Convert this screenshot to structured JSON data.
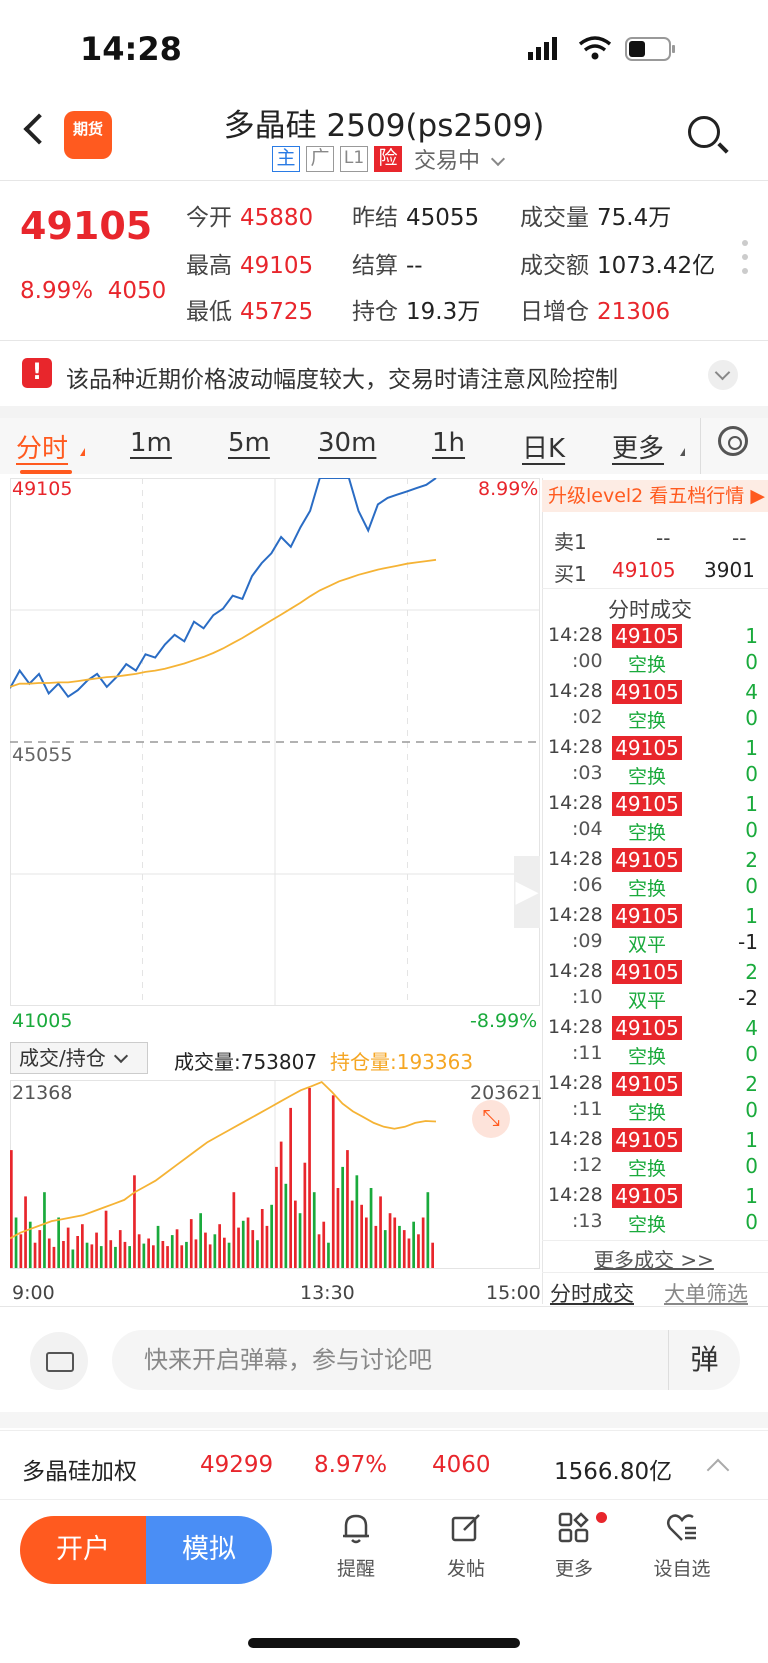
{
  "status_bar": {
    "time": "14:28"
  },
  "header": {
    "app_logo_label": "期货",
    "title": "多晶硅 2509(ps2509)",
    "tags": [
      "主",
      "广",
      "L1",
      "险"
    ],
    "trading_status": "交易中"
  },
  "quote": {
    "price": "49105",
    "change_pct": "8.99%",
    "change": "4050",
    "stats": [
      {
        "label": "今开",
        "value": "45880",
        "color": "red"
      },
      {
        "label": "昨结",
        "value": "45055",
        "color": "dark"
      },
      {
        "label": "成交量",
        "value": "75.4万",
        "color": "dark"
      },
      {
        "label": "最高",
        "value": "49105",
        "color": "red"
      },
      {
        "label": "结算",
        "value": "--",
        "color": "dark"
      },
      {
        "label": "成交额",
        "value": "1073.42亿",
        "color": "dark"
      },
      {
        "label": "最低",
        "value": "45725",
        "color": "red"
      },
      {
        "label": "持仓",
        "value": "19.3万",
        "color": "dark"
      },
      {
        "label": "日增仓",
        "value": "21306",
        "color": "red"
      }
    ]
  },
  "warning": {
    "text": "该品种近期价格波动幅度较大，交易时请注意风险控制",
    "icon": "exclamation-icon"
  },
  "period_tabs": [
    "分时",
    "1m",
    "5m",
    "30m",
    "1h",
    "日K",
    "更多"
  ],
  "chart_labels": {
    "top_price": "49105",
    "top_pct": "8.99%",
    "prev_settle": "45055",
    "bottom_price": "41005",
    "bottom_pct": "-8.99%",
    "vol_selector": "成交/持仓",
    "vol_text": "成交量:753807",
    "oi_text": "持仓量:193363",
    "vol_max": "21368",
    "oi_max": "203621",
    "time_start": "9:00",
    "time_mid": "13:30",
    "time_end": "15:00"
  },
  "chart_data": [
    {
      "type": "line",
      "y_axis": {
        "min": 41005,
        "max": 49105,
        "reference": 45055
      },
      "series": [
        {
          "name": "price",
          "color": "#2a6cc4",
          "values": [
            45880,
            46150,
            45950,
            46100,
            45800,
            45950,
            45750,
            45850,
            46000,
            46100,
            45900,
            46050,
            46250,
            46150,
            46400,
            46350,
            46550,
            46700,
            46600,
            46900,
            46800,
            47000,
            47100,
            47300,
            47250,
            47600,
            47800,
            47950,
            48200,
            48050,
            48350,
            48600,
            49105,
            49105,
            49105,
            49105,
            48600,
            48300,
            48700,
            48800,
            48850,
            48900,
            48950,
            49000,
            49105
          ]
        },
        {
          "name": "avg",
          "color": "#f5b335",
          "values": [
            45900,
            45950,
            45950,
            45960,
            45960,
            45970,
            45970,
            45990,
            46010,
            46030,
            46050,
            46060,
            46080,
            46100,
            46130,
            46150,
            46180,
            46220,
            46260,
            46310,
            46360,
            46420,
            46490,
            46570,
            46650,
            46740,
            46830,
            46920,
            47010,
            47100,
            47190,
            47290,
            47380,
            47450,
            47520,
            47570,
            47620,
            47660,
            47700,
            47730,
            47760,
            47790,
            47810,
            47830,
            47850
          ]
        }
      ]
    },
    {
      "type": "bar",
      "volume_max": 21368,
      "open_interest_max": 203621,
      "volume_values": [
        14000,
        6000,
        4000,
        8500,
        5500,
        3000,
        4500,
        9000,
        3500,
        2500,
        6000,
        3200,
        4800,
        2200,
        3800,
        5200,
        3000,
        2800,
        4200,
        2600,
        6800,
        3300,
        2500,
        4500,
        3100,
        2600,
        11000,
        4000,
        2900,
        3500,
        2700,
        5000,
        3200,
        2600,
        3900,
        4600,
        2700,
        3100,
        5800,
        3400,
        6500,
        4200,
        2800,
        4000,
        5200,
        3600,
        3000,
        9000,
        4800,
        5600,
        6000,
        4500,
        3300,
        7000,
        5000,
        7500,
        12000,
        15000,
        10000,
        19000,
        8000,
        6500,
        12500,
        21368,
        9000,
        4000,
        5500,
        3000,
        20500,
        9500,
        12000,
        14000,
        8000,
        11000,
        7500,
        6000,
        9500,
        5000,
        8500,
        4500,
        6500,
        6000,
        5000,
        4500,
        3500,
        5500,
        4000,
        6000,
        9000,
        3000
      ],
      "open_interest_values": [
        163000,
        164500,
        165500,
        166500,
        167500,
        168000,
        168500,
        169000,
        170000,
        171000,
        172000,
        173000,
        175000,
        176500,
        178000,
        180000,
        182000,
        184000,
        186000,
        188000,
        189500,
        191000,
        192500,
        194000,
        195500,
        197000,
        198500,
        200000,
        201500,
        202500,
        203621,
        201000,
        198000,
        196000,
        194500,
        193000,
        192000,
        191500,
        192000,
        193000,
        193500,
        193363
      ]
    }
  ],
  "level2_banner": "升级level2 看五档行情 ▶",
  "order_book": [
    {
      "label": "卖1",
      "price": "--",
      "vol": "--"
    },
    {
      "label": "买1",
      "price": "49105",
      "vol": "3901"
    }
  ],
  "trades_title": "分时成交",
  "trades": [
    {
      "time": "14:28",
      "sec": ":00",
      "price": "49105",
      "vol": "1",
      "type": "空换",
      "chg": "0"
    },
    {
      "time": "14:28",
      "sec": ":02",
      "price": "49105",
      "vol": "4",
      "type": "空换",
      "chg": "0"
    },
    {
      "time": "14:28",
      "sec": ":03",
      "price": "49105",
      "vol": "1",
      "type": "空换",
      "chg": "0"
    },
    {
      "time": "14:28",
      "sec": ":04",
      "price": "49105",
      "vol": "1",
      "type": "空换",
      "chg": "0"
    },
    {
      "time": "14:28",
      "sec": ":06",
      "price": "49105",
      "vol": "2",
      "type": "空换",
      "chg": "0"
    },
    {
      "time": "14:28",
      "sec": ":09",
      "price": "49105",
      "vol": "1",
      "type": "双平",
      "chg": "-1"
    },
    {
      "time": "14:28",
      "sec": ":10",
      "price": "49105",
      "vol": "2",
      "type": "双平",
      "chg": "-2"
    },
    {
      "time": "14:28",
      "sec": ":11",
      "price": "49105",
      "vol": "4",
      "type": "空换",
      "chg": "0"
    },
    {
      "time": "14:28",
      "sec": ":11",
      "price": "49105",
      "vol": "2",
      "type": "空换",
      "chg": "0"
    },
    {
      "time": "14:28",
      "sec": ":12",
      "price": "49105",
      "vol": "1",
      "type": "空换",
      "chg": "0"
    },
    {
      "time": "14:28",
      "sec": ":13",
      "price": "49105",
      "vol": "1",
      "type": "空换",
      "chg": "0"
    }
  ],
  "more_trades": "更多成交 >>",
  "right_tabs": [
    "分时成交",
    "大单筛选"
  ],
  "comment": {
    "placeholder": "快来开启弹幕，参与讨论吧",
    "danmu": "弹"
  },
  "weighted": {
    "name": "多晶硅加权",
    "price": "49299",
    "pct": "8.97%",
    "change": "4060",
    "amount": "1566.80亿"
  },
  "bottom_nav": {
    "open_account": "开户",
    "simulate": "模拟",
    "items": [
      {
        "label": "提醒",
        "icon": "bell-icon"
      },
      {
        "label": "发帖",
        "icon": "compose-icon"
      },
      {
        "label": "更多",
        "icon": "grid-icon"
      },
      {
        "label": "设自选",
        "icon": "heart-list-icon"
      }
    ]
  }
}
